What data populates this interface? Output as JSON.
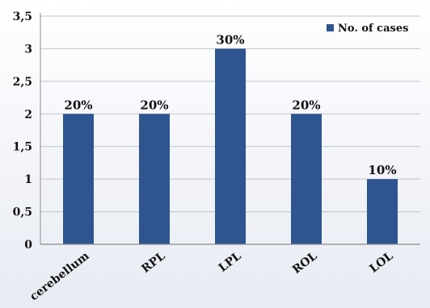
{
  "chart_data": {
    "type": "bar",
    "categories": [
      "cerebellum",
      "RPL",
      "LPL",
      "ROL",
      "LOL"
    ],
    "series": [
      {
        "name": "No. of cases",
        "values": [
          2,
          2,
          3,
          2,
          1
        ],
        "data_labels": [
          "20%",
          "20%",
          "30%",
          "20%",
          "10%"
        ],
        "color": "#2e5590"
      }
    ],
    "y_ticks": [
      "0",
      "0,5",
      "1",
      "1,5",
      "2",
      "2,5",
      "3",
      "3,5"
    ],
    "ylim": [
      0,
      3.5
    ],
    "grid": true,
    "legend": {
      "position": "top-right"
    },
    "colors": {
      "grid": "#bfc3c8",
      "axis": "#8c8c8c",
      "text": "#111111"
    }
  }
}
